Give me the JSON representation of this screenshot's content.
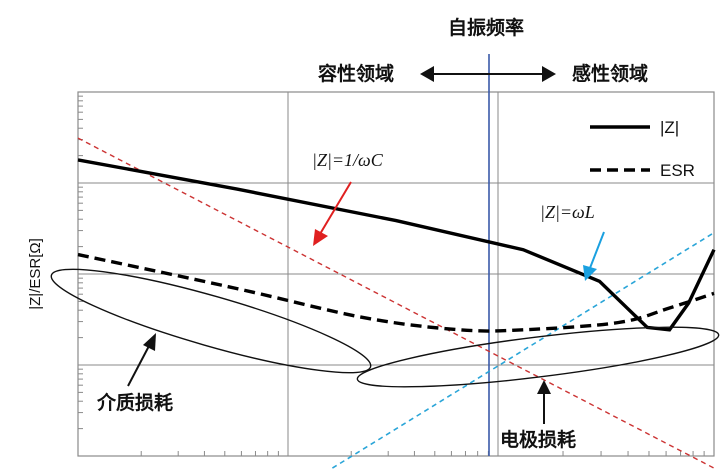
{
  "chart_data": {
    "type": "line",
    "title": "自振频率",
    "ylabel": "|Z|/ESR[Ω]",
    "xlabel": "",
    "x_scale": "log",
    "y_scale": "log",
    "grid": true,
    "legend_position": "top-right",
    "region_labels": {
      "left": "容性领域",
      "right": "感性领域"
    },
    "legend": [
      {
        "label": "|Z|",
        "style": "solid"
      },
      {
        "label": "ESR",
        "style": "dashed"
      }
    ],
    "annotations": {
      "capacitive_formula": "|Z|=1/ωC",
      "inductive_formula": "|Z|=ωL",
      "dielectric_loss": "介质损耗",
      "electrode_loss": "电极损耗"
    },
    "colors": {
      "impedance": "#000000",
      "esr": "#000000",
      "capacitive_line": "#cc3333",
      "inductive_line": "#2aa5d8",
      "arrow_red": "#e02020",
      "arrow_blue": "#1aa0e0",
      "resonance_line": "#3a5aa8",
      "grid": "#8a8a8a"
    },
    "series": [
      {
        "name": "|Z|",
        "points": [
          [
            0,
            1.72
          ],
          [
            0.25,
            1.6
          ],
          [
            0.5,
            1.47
          ],
          [
            0.7,
            1.35
          ],
          [
            0.82,
            1.22
          ],
          [
            0.895,
            1.03
          ],
          [
            0.93,
            1.02
          ],
          [
            0.96,
            1.13
          ],
          [
            1.0,
            1.35
          ]
        ]
      },
      {
        "name": "ESR",
        "points": [
          [
            0,
            1.33
          ],
          [
            0.25,
            1.19
          ],
          [
            0.45,
            1.07
          ],
          [
            0.6,
            1.02
          ],
          [
            0.7,
            1.02
          ],
          [
            0.85,
            1.05
          ],
          [
            0.93,
            1.11
          ],
          [
            1.0,
            1.17
          ]
        ]
      },
      {
        "name": "|Z|=1/ωC",
        "points": [
          [
            0,
            1.81
          ],
          [
            1.0,
            0.45
          ]
        ]
      },
      {
        "name": "|Z|=ωL",
        "points": [
          [
            0.4,
            0.45
          ],
          [
            1.0,
            1.42
          ]
        ]
      }
    ]
  }
}
